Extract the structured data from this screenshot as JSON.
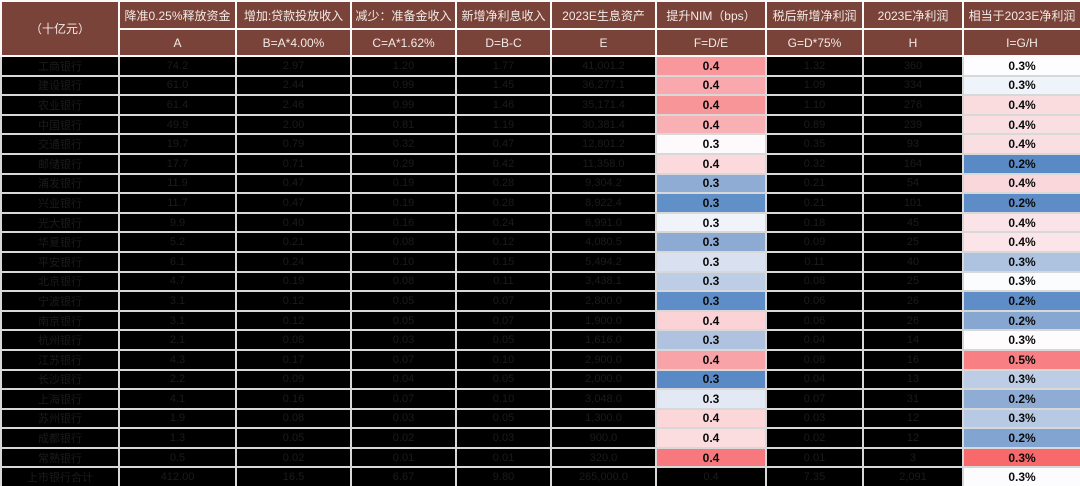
{
  "unit_label": "（十亿元）",
  "columns": [
    {
      "title": "降准0.25%释放资金",
      "formula": "A"
    },
    {
      "title": "增加:贷款投放收入",
      "formula": "B=A*4.00%"
    },
    {
      "title": "减少：准备金收入",
      "formula": "C=A*1.62%"
    },
    {
      "title": "新增净利息收入",
      "formula": "D=B-C"
    },
    {
      "title": "2023E生息资产",
      "formula": "E"
    },
    {
      "title": "提升NIM（bps）",
      "formula": "F=D/E"
    },
    {
      "title": "税后新增净利润",
      "formula": "G=D*75%"
    },
    {
      "title": "2023E净利润",
      "formula": "H"
    },
    {
      "title": "相当于2023E净利润",
      "formula": "I=G/H"
    }
  ],
  "colors": {
    "header_bg": "#7A4339",
    "row_bg": "#000000",
    "redacted_text": "#1B1B1B",
    "border_body": "#D8D8D8",
    "border_header": "#FDFBFA",
    "scale_red": "#F8696B",
    "scale_white": "#FCFCFF",
    "scale_blue": "#5A8AC6"
  },
  "rows": [
    {
      "name": "工商银行",
      "a": "74.2",
      "b": "2.97",
      "c": "1.20",
      "d": "1.77",
      "e": "41,001.2",
      "f": "0.4",
      "f_color": "#F8989C",
      "g": "1.32",
      "h": "360",
      "i": "0.3%",
      "i_color": "#FDFDFF"
    },
    {
      "name": "建设银行",
      "a": "61.0",
      "b": "2.44",
      "c": "0.99",
      "d": "1.45",
      "e": "36,277.1",
      "f": "0.4",
      "f_color": "#F9A9AD",
      "g": "1.09",
      "h": "334",
      "i": "0.3%",
      "i_color": "#EFF4FB"
    },
    {
      "name": "农业银行",
      "a": "61.4",
      "b": "2.46",
      "c": "0.99",
      "d": "1.46",
      "e": "35,171.4",
      "f": "0.4",
      "f_color": "#F89598",
      "g": "1.10",
      "h": "276",
      "i": "0.4%",
      "i_color": "#FADBDE"
    },
    {
      "name": "中国银行",
      "a": "49.9",
      "b": "2.00",
      "c": "0.81",
      "d": "1.19",
      "e": "30,381.4",
      "f": "0.4",
      "f_color": "#F9B0B4",
      "g": "0.89",
      "h": "239",
      "i": "0.4%",
      "i_color": "#FADFE2"
    },
    {
      "name": "交通银行",
      "a": "19.7",
      "b": "0.79",
      "c": "0.32",
      "d": "0.47",
      "e": "12,801.2",
      "f": "0.3",
      "f_color": "#FEFAFB",
      "g": "0.35",
      "h": "93",
      "i": "0.4%",
      "i_color": "#FADFE2"
    },
    {
      "name": "邮储银行",
      "a": "17.7",
      "b": "0.71",
      "c": "0.29",
      "d": "0.42",
      "e": "11,358.0",
      "f": "0.4",
      "f_color": "#FBD9DD",
      "g": "0.32",
      "h": "164",
      "i": "0.2%",
      "i_color": "#5A8AC6"
    },
    {
      "name": "浦发银行",
      "a": "11.9",
      "b": "0.47",
      "c": "0.19",
      "d": "0.28",
      "e": "9,304.2",
      "f": "0.3",
      "f_color": "#8FACD4",
      "g": "0.21",
      "h": "54",
      "i": "0.4%",
      "i_color": "#F9D7DA"
    },
    {
      "name": "兴业银行",
      "a": "11.7",
      "b": "0.47",
      "c": "0.19",
      "d": "0.28",
      "e": "8,922.4",
      "f": "0.3",
      "f_color": "#6190C9",
      "g": "0.21",
      "h": "101",
      "i": "0.2%",
      "i_color": "#5D8CC7"
    },
    {
      "name": "光大银行",
      "a": "9.9",
      "b": "0.40",
      "c": "0.16",
      "d": "0.24",
      "e": "6,991.0",
      "f": "0.3",
      "f_color": "#F0F4FA",
      "g": "0.18",
      "h": "45",
      "i": "0.4%",
      "i_color": "#FBE4E7"
    },
    {
      "name": "华夏银行",
      "a": "5.2",
      "b": "0.21",
      "c": "0.08",
      "d": "0.12",
      "e": "4,080.5",
      "f": "0.3",
      "f_color": "#8CAAD2",
      "g": "0.09",
      "h": "25",
      "i": "0.4%",
      "i_color": "#FBE5E8"
    },
    {
      "name": "平安银行",
      "a": "6.1",
      "b": "0.24",
      "c": "0.10",
      "d": "0.15",
      "e": "5,494.2",
      "f": "0.3",
      "f_color": "#D9E1F0",
      "g": "0.11",
      "h": "40",
      "i": "0.3%",
      "i_color": "#AEC3E0"
    },
    {
      "name": "北京银行",
      "a": "4.7",
      "b": "0.19",
      "c": "0.08",
      "d": "0.11",
      "e": "3,438.1",
      "f": "0.3",
      "f_color": "#BCCDE5",
      "g": "0.08",
      "h": "25",
      "i": "0.3%",
      "i_color": "#FBFCFE"
    },
    {
      "name": "宁波银行",
      "a": "3.1",
      "b": "0.12",
      "c": "0.05",
      "d": "0.07",
      "e": "2,800.0",
      "f": "0.3",
      "f_color": "#5F8DC8",
      "g": "0.06",
      "h": "26",
      "i": "0.2%",
      "i_color": "#5F8DC8"
    },
    {
      "name": "南京银行",
      "a": "3.1",
      "b": "0.12",
      "c": "0.05",
      "d": "0.07",
      "e": "1,900.0",
      "f": "0.4",
      "f_color": "#FBD2D6",
      "g": "0.06",
      "h": "26",
      "i": "0.2%",
      "i_color": "#87A7D1"
    },
    {
      "name": "杭州银行",
      "a": "2.1",
      "b": "0.08",
      "c": "0.03",
      "d": "0.05",
      "e": "1,616.0",
      "f": "0.3",
      "f_color": "#AFC3E0",
      "g": "0.04",
      "h": "14",
      "i": "0.3%",
      "i_color": "#FEFCFD"
    },
    {
      "name": "江苏银行",
      "a": "4.3",
      "b": "0.17",
      "c": "0.07",
      "d": "0.10",
      "e": "2,900.0",
      "f": "0.4",
      "f_color": "#F8A3A7",
      "g": "0.08",
      "h": "16",
      "i": "0.5%",
      "i_color": "#F87F83"
    },
    {
      "name": "长沙银行",
      "a": "2.2",
      "b": "0.09",
      "c": "0.04",
      "d": "0.05",
      "e": "2,000.0",
      "f": "0.3",
      "f_color": "#5A8AC6",
      "g": "0.04",
      "h": "13",
      "i": "0.3%",
      "i_color": "#BCCDE5"
    },
    {
      "name": "上海银行",
      "a": "4.1",
      "b": "0.16",
      "c": "0.07",
      "d": "0.10",
      "e": "3,048.0",
      "f": "0.3",
      "f_color": "#E3E9F4",
      "g": "0.07",
      "h": "31",
      "i": "0.2%",
      "i_color": "#8FACD4"
    },
    {
      "name": "苏州银行",
      "a": "1.9",
      "b": "0.08",
      "c": "0.03",
      "d": "0.05",
      "e": "1,300.0",
      "f": "0.4",
      "f_color": "#FBD7DA",
      "g": "0.03",
      "h": "12",
      "i": "0.3%",
      "i_color": "#B7C9E3"
    },
    {
      "name": "成都银行",
      "a": "1.3",
      "b": "0.05",
      "c": "0.02",
      "d": "0.03",
      "e": "900.0",
      "f": "0.4",
      "f_color": "#FBDCDF",
      "g": "0.02",
      "h": "12",
      "i": "0.2%",
      "i_color": "#82A4D0"
    },
    {
      "name": "常熟银行",
      "a": "0.5",
      "b": "0.02",
      "c": "0.01",
      "d": "0.01",
      "e": "320.0",
      "f": "0.4",
      "f_color": "#F8797D",
      "g": "0.01",
      "h": "3",
      "i": "0.3%",
      "i_color": "#F8696B"
    },
    {
      "name": "上市银行合计",
      "a": "412.00",
      "b": "16.5",
      "c": "6.67",
      "d": "9.80",
      "e": "265,000.0",
      "f": "0.4",
      "f_color": "#000000",
      "g": "7.35",
      "h": "2,091",
      "i": "0.3%",
      "i_color": "#FCFCFF"
    }
  ]
}
